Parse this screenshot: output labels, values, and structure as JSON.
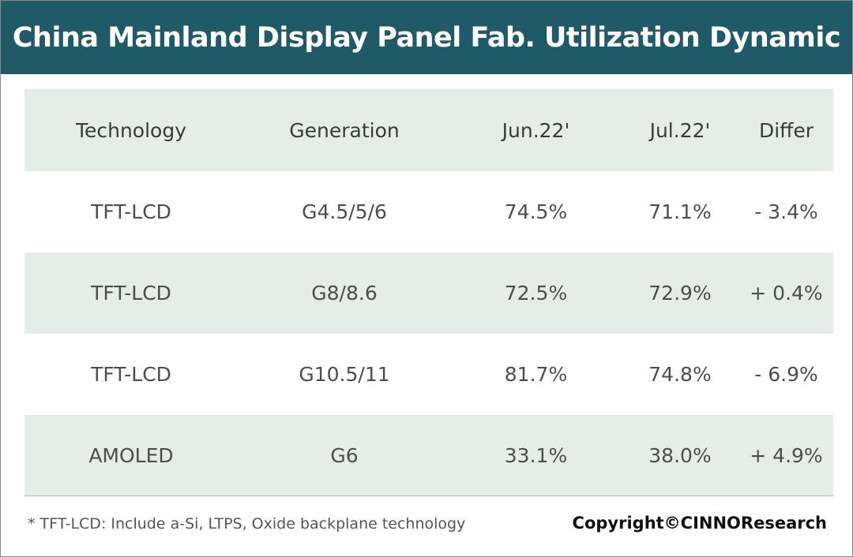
{
  "title": "China Mainland Display Panel Fab. Utilization Dynamic",
  "colors": {
    "title_bar": "#1f5a68",
    "shaded_row": "#e6ede9",
    "text": "#4d4d4d"
  },
  "chart_data": {
    "type": "table",
    "title": "China Mainland Display Panel Fab. Utilization Dynamic",
    "columns": [
      "Technology",
      "Generation",
      "Jun.22'",
      "Jul.22'",
      "Differ"
    ],
    "rows": [
      [
        "TFT-LCD",
        "G4.5/5/6",
        "74.5%",
        "71.1%",
        "- 3.4%"
      ],
      [
        "TFT-LCD",
        "G8/8.6",
        "72.5%",
        "72.9%",
        "+ 0.4%"
      ],
      [
        "TFT-LCD",
        "G10.5/11",
        "81.7%",
        "74.8%",
        "- 6.9%"
      ],
      [
        "AMOLED",
        "G6",
        "33.1%",
        "38.0%",
        "+ 4.9%"
      ]
    ]
  },
  "footnote": "* TFT-LCD: Include a-Si, LTPS, Oxide backplane technology",
  "copyright": "Copyright©CINNOResearch"
}
